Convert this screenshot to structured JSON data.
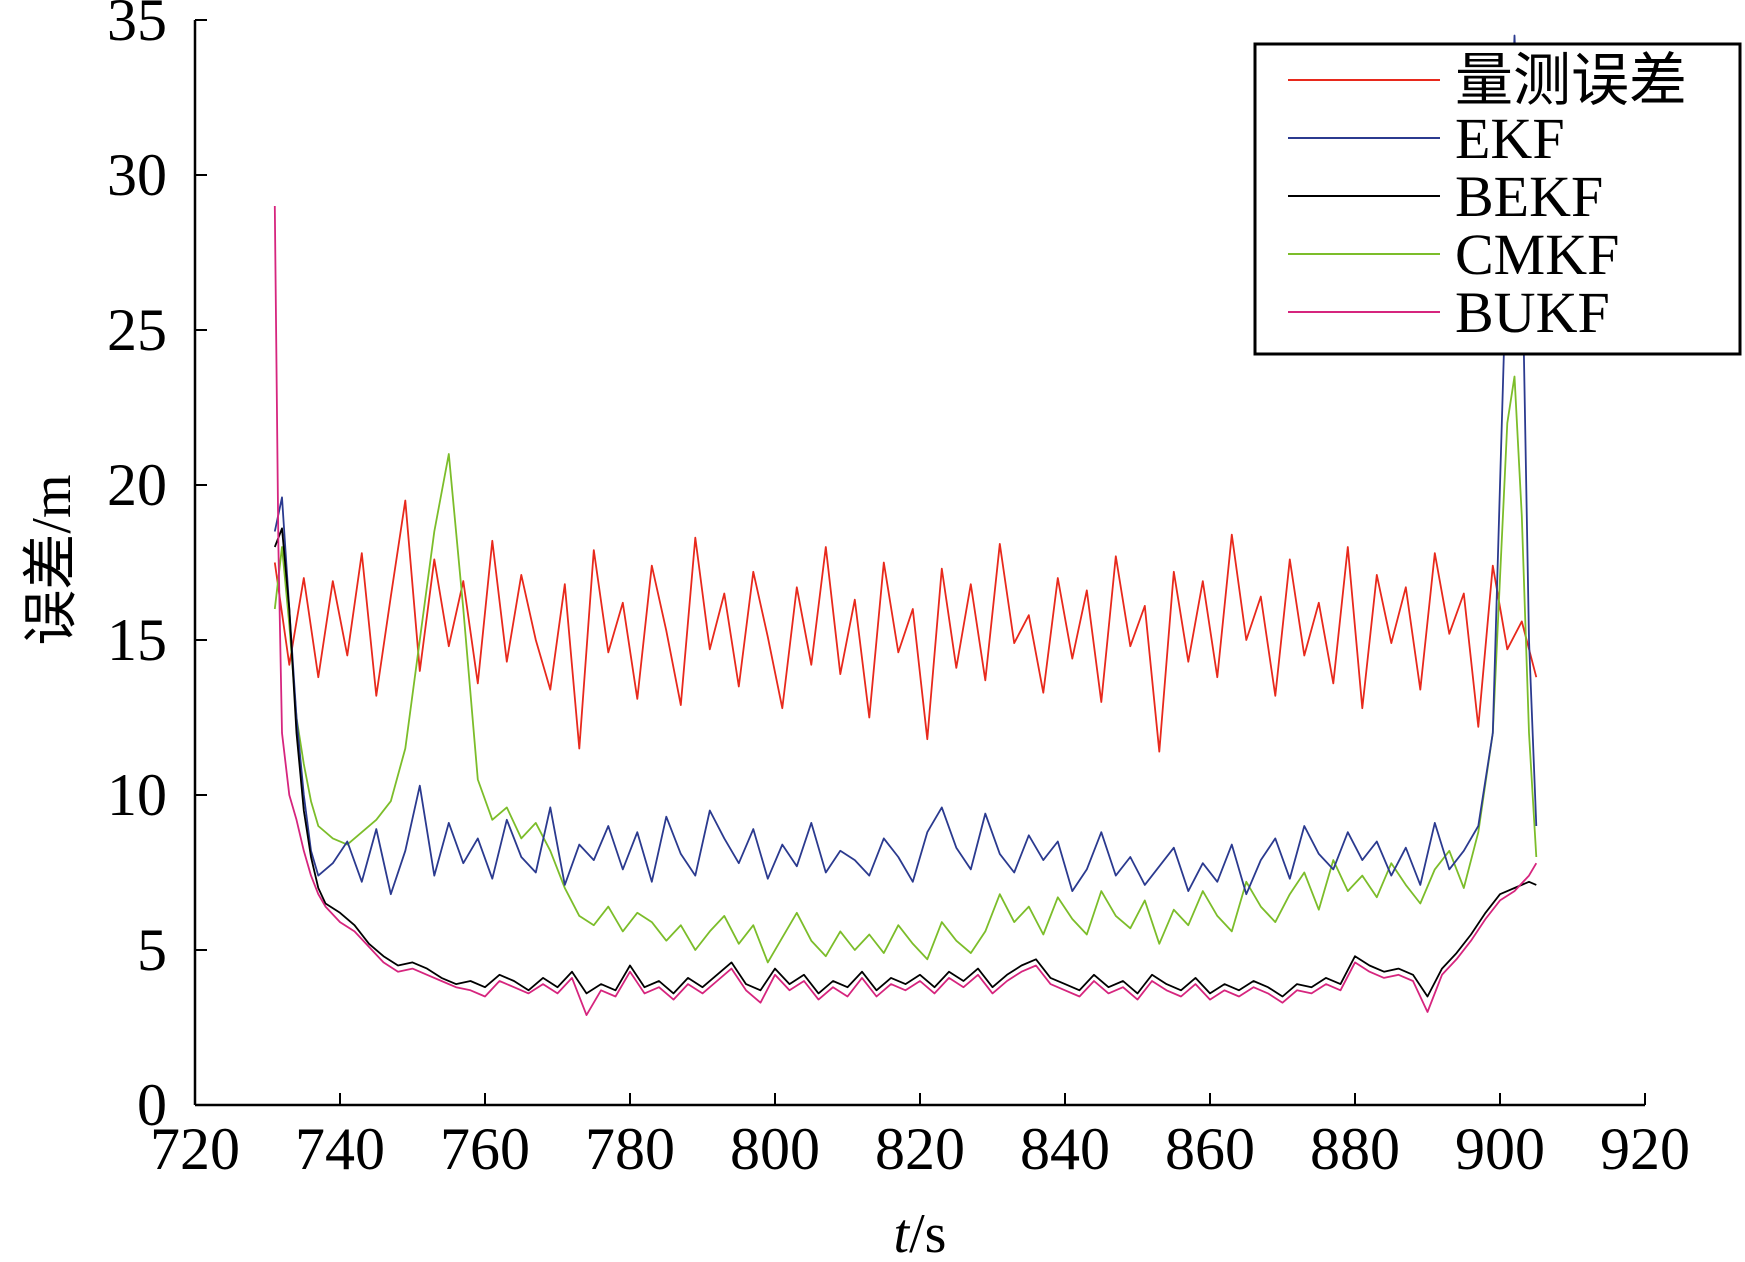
{
  "chart_data": {
    "type": "line",
    "title": "",
    "xlabel_italic": "t",
    "xlabel_unit": "/s",
    "ylabel": "误差/m",
    "xlim": [
      720,
      920
    ],
    "ylim": [
      0,
      35
    ],
    "x_ticks": [
      720,
      740,
      760,
      780,
      800,
      820,
      840,
      860,
      880,
      900,
      920
    ],
    "y_ticks": [
      0,
      5,
      10,
      15,
      20,
      25,
      30,
      35
    ],
    "grid": false,
    "legend_position": "top-right",
    "series": [
      {
        "name": "量测误差",
        "color": "#e8291c",
        "x": [
          731,
          733,
          735,
          737,
          739,
          741,
          743,
          745,
          747,
          749,
          751,
          753,
          755,
          757,
          759,
          761,
          763,
          765,
          767,
          769,
          771,
          773,
          775,
          777,
          779,
          781,
          783,
          785,
          787,
          789,
          791,
          793,
          795,
          797,
          799,
          801,
          803,
          805,
          807,
          809,
          811,
          813,
          815,
          817,
          819,
          821,
          823,
          825,
          827,
          829,
          831,
          833,
          835,
          837,
          839,
          841,
          843,
          845,
          847,
          849,
          851,
          853,
          855,
          857,
          859,
          861,
          863,
          865,
          867,
          869,
          871,
          873,
          875,
          877,
          879,
          881,
          883,
          885,
          887,
          889,
          891,
          893,
          895,
          897,
          899,
          901,
          903,
          905
        ],
        "y": [
          17.5,
          14.2,
          17.0,
          13.8,
          16.9,
          14.5,
          17.8,
          13.2,
          16.4,
          19.5,
          14.0,
          17.6,
          14.8,
          16.9,
          13.6,
          18.2,
          14.3,
          17.1,
          15.0,
          13.4,
          16.8,
          11.5,
          17.9,
          14.6,
          16.2,
          13.1,
          17.4,
          15.3,
          12.9,
          18.3,
          14.7,
          16.5,
          13.5,
          17.2,
          15.1,
          12.8,
          16.7,
          14.2,
          18.0,
          13.9,
          16.3,
          12.5,
          17.5,
          14.6,
          16.0,
          11.8,
          17.3,
          14.1,
          16.8,
          13.7,
          18.1,
          14.9,
          15.8,
          13.3,
          17.0,
          14.4,
          16.6,
          13.0,
          17.7,
          14.8,
          16.1,
          11.4,
          17.2,
          14.3,
          16.9,
          13.8,
          18.4,
          15.0,
          16.4,
          13.2,
          17.6,
          14.5,
          16.2,
          13.6,
          18.0,
          12.8,
          17.1,
          14.9,
          16.7,
          13.4,
          17.8,
          15.2,
          16.5,
          12.2,
          17.4,
          14.7,
          15.6,
          13.8
        ]
      },
      {
        "name": "EKF",
        "color": "#2b3a8f",
        "x": [
          731,
          732,
          733,
          734,
          735,
          736,
          737,
          739,
          741,
          743,
          745,
          747,
          749,
          751,
          753,
          755,
          757,
          759,
          761,
          763,
          765,
          767,
          769,
          771,
          773,
          775,
          777,
          779,
          781,
          783,
          785,
          787,
          789,
          791,
          793,
          795,
          797,
          799,
          801,
          803,
          805,
          807,
          809,
          811,
          813,
          815,
          817,
          819,
          821,
          823,
          825,
          827,
          829,
          831,
          833,
          835,
          837,
          839,
          841,
          843,
          845,
          847,
          849,
          851,
          853,
          855,
          857,
          859,
          861,
          863,
          865,
          867,
          869,
          871,
          873,
          875,
          877,
          879,
          881,
          883,
          885,
          887,
          889,
          891,
          893,
          895,
          897,
          899,
          900,
          901,
          902,
          903,
          904,
          905
        ],
        "y": [
          18.5,
          19.6,
          16.0,
          12.5,
          10.0,
          8.2,
          7.4,
          7.8,
          8.5,
          7.2,
          8.9,
          6.8,
          8.2,
          10.3,
          7.4,
          9.1,
          7.8,
          8.6,
          7.3,
          9.2,
          8.0,
          7.5,
          9.6,
          7.1,
          8.4,
          7.9,
          9.0,
          7.6,
          8.8,
          7.2,
          9.3,
          8.1,
          7.4,
          9.5,
          8.6,
          7.8,
          8.9,
          7.3,
          8.4,
          7.7,
          9.1,
          7.5,
          8.2,
          7.9,
          7.4,
          8.6,
          8.0,
          7.2,
          8.8,
          9.6,
          8.3,
          7.6,
          9.4,
          8.1,
          7.5,
          8.7,
          7.9,
          8.5,
          6.9,
          7.6,
          8.8,
          7.4,
          8.0,
          7.1,
          7.7,
          8.3,
          6.9,
          7.8,
          7.2,
          8.4,
          6.8,
          7.9,
          8.6,
          7.3,
          9.0,
          8.1,
          7.6,
          8.8,
          7.9,
          8.5,
          7.4,
          8.3,
          7.1,
          9.1,
          7.6,
          8.2,
          9.0,
          12.0,
          20.0,
          28.0,
          34.5,
          28.0,
          15.0,
          9.0
        ]
      },
      {
        "name": "BEKF",
        "color": "#000000",
        "x": [
          731,
          732,
          733,
          734,
          735,
          736,
          737,
          738,
          740,
          742,
          744,
          746,
          748,
          750,
          752,
          754,
          756,
          758,
          760,
          762,
          764,
          766,
          768,
          770,
          772,
          774,
          776,
          778,
          780,
          782,
          784,
          786,
          788,
          790,
          792,
          794,
          796,
          798,
          800,
          802,
          804,
          806,
          808,
          810,
          812,
          814,
          816,
          818,
          820,
          822,
          824,
          826,
          828,
          830,
          832,
          834,
          836,
          838,
          840,
          842,
          844,
          846,
          848,
          850,
          852,
          854,
          856,
          858,
          860,
          862,
          864,
          866,
          868,
          870,
          872,
          874,
          876,
          878,
          880,
          882,
          884,
          886,
          888,
          890,
          892,
          894,
          896,
          898,
          900,
          902,
          904,
          905
        ],
        "y": [
          18.0,
          18.6,
          16.0,
          12.0,
          9.5,
          8.0,
          7.0,
          6.5,
          6.2,
          5.8,
          5.2,
          4.8,
          4.5,
          4.6,
          4.4,
          4.1,
          3.9,
          4.0,
          3.8,
          4.2,
          4.0,
          3.7,
          4.1,
          3.8,
          4.3,
          3.6,
          3.9,
          3.7,
          4.5,
          3.8,
          4.0,
          3.6,
          4.1,
          3.8,
          4.2,
          4.6,
          3.9,
          3.7,
          4.4,
          3.9,
          4.2,
          3.6,
          4.0,
          3.8,
          4.3,
          3.7,
          4.1,
          3.9,
          4.2,
          3.8,
          4.3,
          4.0,
          4.4,
          3.8,
          4.2,
          4.5,
          4.7,
          4.1,
          3.9,
          3.7,
          4.2,
          3.8,
          4.0,
          3.6,
          4.2,
          3.9,
          3.7,
          4.1,
          3.6,
          3.9,
          3.7,
          4.0,
          3.8,
          3.5,
          3.9,
          3.8,
          4.1,
          3.9,
          4.8,
          4.5,
          4.3,
          4.4,
          4.2,
          3.5,
          4.4,
          4.9,
          5.5,
          6.2,
          6.8,
          7.0,
          7.2,
          7.1
        ]
      },
      {
        "name": "CMKF",
        "color": "#7cbd2a",
        "x": [
          731,
          732,
          733,
          734,
          735,
          736,
          737,
          739,
          741,
          743,
          745,
          747,
          749,
          751,
          753,
          755,
          757,
          759,
          761,
          763,
          765,
          767,
          769,
          771,
          773,
          775,
          777,
          779,
          781,
          783,
          785,
          787,
          789,
          791,
          793,
          795,
          797,
          799,
          801,
          803,
          805,
          807,
          809,
          811,
          813,
          815,
          817,
          819,
          821,
          823,
          825,
          827,
          829,
          831,
          833,
          835,
          837,
          839,
          841,
          843,
          845,
          847,
          849,
          851,
          853,
          855,
          857,
          859,
          861,
          863,
          865,
          867,
          869,
          871,
          873,
          875,
          877,
          879,
          881,
          883,
          885,
          887,
          889,
          891,
          893,
          895,
          897,
          899,
          900,
          901,
          902,
          903,
          904,
          905
        ],
        "y": [
          16.0,
          18.0,
          15.5,
          12.5,
          11.0,
          9.8,
          9.0,
          8.6,
          8.4,
          8.8,
          9.2,
          9.8,
          11.5,
          15.0,
          18.5,
          21.0,
          16.0,
          10.5,
          9.2,
          9.6,
          8.6,
          9.1,
          8.2,
          7.0,
          6.1,
          5.8,
          6.4,
          5.6,
          6.2,
          5.9,
          5.3,
          5.8,
          5.0,
          5.6,
          6.1,
          5.2,
          5.8,
          4.6,
          5.4,
          6.2,
          5.3,
          4.8,
          5.6,
          5.0,
          5.5,
          4.9,
          5.8,
          5.2,
          4.7,
          5.9,
          5.3,
          4.9,
          5.6,
          6.8,
          5.9,
          6.4,
          5.5,
          6.7,
          6.0,
          5.5,
          6.9,
          6.1,
          5.7,
          6.6,
          5.2,
          6.3,
          5.8,
          6.9,
          6.1,
          5.6,
          7.2,
          6.4,
          5.9,
          6.8,
          7.5,
          6.3,
          7.9,
          6.9,
          7.4,
          6.7,
          7.8,
          7.1,
          6.5,
          7.6,
          8.2,
          7.0,
          8.8,
          12.0,
          17.0,
          22.0,
          23.5,
          19.0,
          12.0,
          8.0
        ]
      },
      {
        "name": "BUKF",
        "color": "#d6257e",
        "x": [
          731,
          731.5,
          732,
          733,
          734,
          735,
          736,
          737,
          738,
          740,
          742,
          744,
          746,
          748,
          750,
          752,
          754,
          756,
          758,
          760,
          762,
          764,
          766,
          768,
          770,
          772,
          774,
          776,
          778,
          780,
          782,
          784,
          786,
          788,
          790,
          792,
          794,
          796,
          798,
          800,
          802,
          804,
          806,
          808,
          810,
          812,
          814,
          816,
          818,
          820,
          822,
          824,
          826,
          828,
          830,
          832,
          834,
          836,
          838,
          840,
          842,
          844,
          846,
          848,
          850,
          852,
          854,
          856,
          858,
          860,
          862,
          864,
          866,
          868,
          870,
          872,
          874,
          876,
          878,
          880,
          882,
          884,
          886,
          888,
          890,
          892,
          894,
          896,
          898,
          900,
          902,
          904,
          905
        ],
        "y": [
          29.0,
          18.0,
          12.0,
          10.0,
          9.2,
          8.2,
          7.4,
          6.8,
          6.4,
          5.9,
          5.6,
          5.1,
          4.6,
          4.3,
          4.4,
          4.2,
          4.0,
          3.8,
          3.7,
          3.5,
          4.0,
          3.8,
          3.6,
          3.9,
          3.6,
          4.1,
          2.9,
          3.7,
          3.5,
          4.3,
          3.6,
          3.8,
          3.4,
          3.9,
          3.6,
          4.0,
          4.4,
          3.7,
          3.3,
          4.2,
          3.7,
          4.0,
          3.4,
          3.8,
          3.5,
          4.1,
          3.5,
          3.9,
          3.7,
          4.0,
          3.6,
          4.1,
          3.8,
          4.2,
          3.6,
          4.0,
          4.3,
          4.5,
          3.9,
          3.7,
          3.5,
          4.0,
          3.6,
          3.8,
          3.4,
          4.0,
          3.7,
          3.5,
          3.9,
          3.4,
          3.7,
          3.5,
          3.8,
          3.6,
          3.3,
          3.7,
          3.6,
          3.9,
          3.7,
          4.6,
          4.3,
          4.1,
          4.2,
          4.0,
          3.0,
          4.2,
          4.7,
          5.3,
          6.0,
          6.6,
          6.9,
          7.4,
          7.8
        ]
      }
    ]
  }
}
